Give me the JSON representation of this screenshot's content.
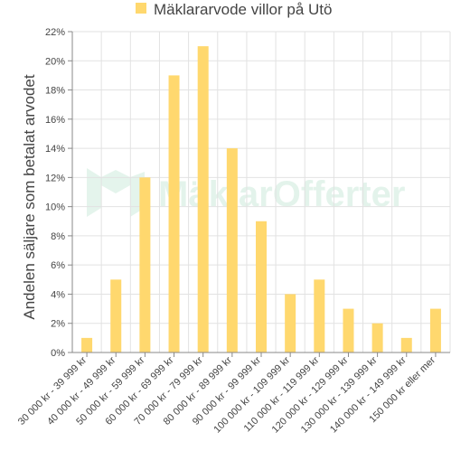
{
  "chart_data": {
    "type": "bar",
    "title": "",
    "legend": [
      "Mäklararvode villor på Utö"
    ],
    "ylabel": "Andelen säljare som betalat arvodet",
    "xlabel": "",
    "categories": [
      "30 000 kr - 39 999 kr",
      "40 000 kr - 49 999 kr",
      "50 000 kr - 59 999 kr",
      "60 000 kr - 69 999 kr",
      "70 000 kr - 79 999 kr",
      "80 000 kr - 89 999 kr",
      "90 000 kr - 99 999 kr",
      "100 000 kr - 109 999 kr",
      "110 000 kr - 119 999 kr",
      "120 000 kr - 129 999 kr",
      "130 000 kr - 139 999 kr",
      "140 000 kr - 149 999 kr",
      "150 000 kr eller mer"
    ],
    "series": [
      {
        "name": "Mäklararvode villor på Utö",
        "color": "#ffd86e",
        "values": [
          1,
          5,
          12,
          19,
          21,
          14,
          9,
          4,
          5,
          3,
          2,
          1,
          3
        ]
      }
    ],
    "yticks": [
      "0%",
      "2%",
      "4%",
      "6%",
      "8%",
      "10%",
      "12%",
      "14%",
      "16%",
      "18%",
      "20%",
      "22%"
    ],
    "ylim": [
      0,
      22
    ],
    "grid": true,
    "legend_position": "top"
  },
  "watermark": {
    "text": "MäklarOfferter",
    "color": "#2fa86a"
  }
}
